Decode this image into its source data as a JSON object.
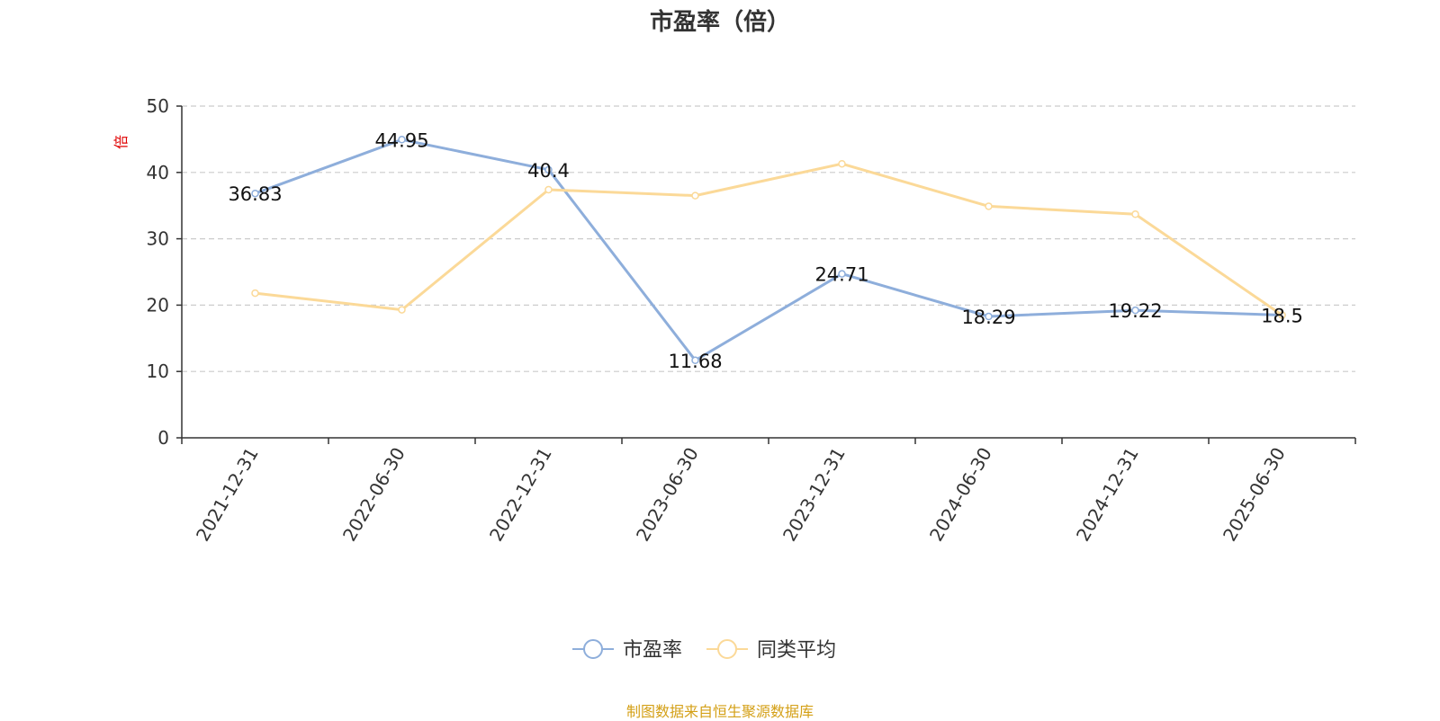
{
  "chart_data": {
    "type": "line",
    "title": "市盈率（倍）",
    "ylabel": "倍",
    "xlabel": "",
    "categories": [
      "2021-12-31",
      "2022-06-30",
      "2022-12-31",
      "2023-06-30",
      "2023-12-31",
      "2024-06-30",
      "2024-12-31",
      "2025-06-30"
    ],
    "ylim": [
      0,
      50
    ],
    "yticks": [
      0,
      10,
      20,
      30,
      40,
      50
    ],
    "grid": true,
    "legend_position": "bottom",
    "series": [
      {
        "name": "市盈率",
        "color": "#8eaedb",
        "values": [
          36.83,
          44.95,
          40.4,
          11.68,
          24.71,
          18.29,
          19.22,
          18.5
        ],
        "data_labels": [
          "36.83",
          "44.95",
          "40.4",
          "11.68",
          "24.71",
          "18.29",
          "19.22",
          "18.5"
        ]
      },
      {
        "name": "同类平均",
        "color": "#fbd998",
        "values": [
          21.8,
          19.3,
          37.4,
          36.5,
          41.3,
          34.9,
          33.7,
          18.5
        ]
      }
    ]
  },
  "source_note": "制图数据来自恒生聚源数据库"
}
